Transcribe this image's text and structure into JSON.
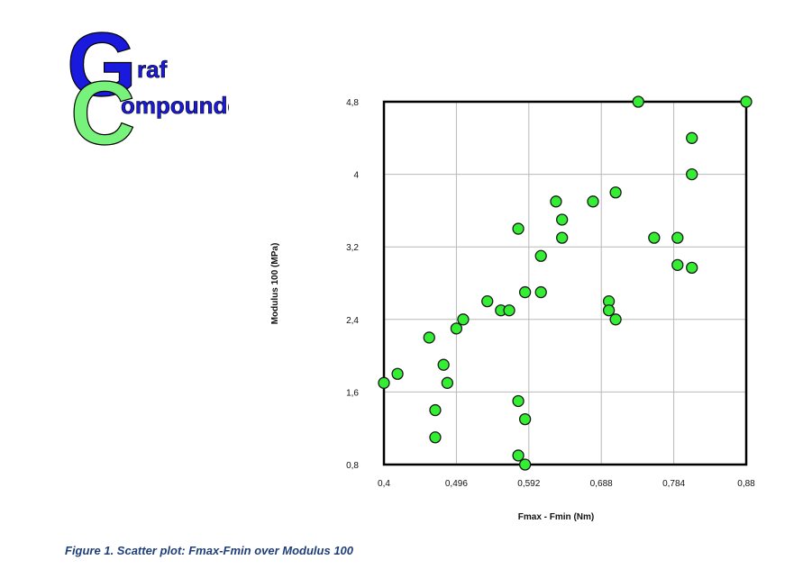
{
  "logo": {
    "word1": "raf",
    "word2": "ompounder",
    "letter1": "G",
    "letter2": "C",
    "color_blue": "#1a1adf",
    "color_green": "#77f27a"
  },
  "caption": "Figure 1. Scatter plot:  Fmax-Fmin over Modulus 100",
  "chart_data": {
    "type": "scatter",
    "title": "",
    "xlabel": "Fmax - Fmin  (Nm)",
    "ylabel": "Modulus 100 (MPa)",
    "xlim": [
      0.4,
      0.88
    ],
    "ylim": [
      0.8,
      4.8
    ],
    "xticks": [
      "0,4",
      "0,496",
      "0,592",
      "0,688",
      "0,784",
      "0,88"
    ],
    "yticks": [
      "0,8",
      "1,6",
      "2,4",
      "3,2",
      "4",
      "4,8"
    ],
    "grid": true,
    "marker_color": "#33ee33",
    "points": [
      {
        "x": 0.4,
        "y": 1.7
      },
      {
        "x": 0.418,
        "y": 1.8
      },
      {
        "x": 0.46,
        "y": 2.2
      },
      {
        "x": 0.468,
        "y": 1.4
      },
      {
        "x": 0.468,
        "y": 1.1
      },
      {
        "x": 0.479,
        "y": 1.9
      },
      {
        "x": 0.484,
        "y": 1.7
      },
      {
        "x": 0.496,
        "y": 2.3
      },
      {
        "x": 0.505,
        "y": 2.4
      },
      {
        "x": 0.537,
        "y": 2.6
      },
      {
        "x": 0.555,
        "y": 2.5
      },
      {
        "x": 0.566,
        "y": 2.5
      },
      {
        "x": 0.578,
        "y": 3.4
      },
      {
        "x": 0.578,
        "y": 1.5
      },
      {
        "x": 0.578,
        "y": 0.9
      },
      {
        "x": 0.587,
        "y": 2.7
      },
      {
        "x": 0.587,
        "y": 1.3
      },
      {
        "x": 0.587,
        "y": 0.8
      },
      {
        "x": 0.608,
        "y": 3.1
      },
      {
        "x": 0.608,
        "y": 2.7
      },
      {
        "x": 0.628,
        "y": 3.7
      },
      {
        "x": 0.636,
        "y": 3.5
      },
      {
        "x": 0.636,
        "y": 3.3
      },
      {
        "x": 0.677,
        "y": 3.7
      },
      {
        "x": 0.698,
        "y": 2.6
      },
      {
        "x": 0.698,
        "y": 2.5
      },
      {
        "x": 0.707,
        "y": 3.8
      },
      {
        "x": 0.707,
        "y": 2.4
      },
      {
        "x": 0.737,
        "y": 4.8
      },
      {
        "x": 0.758,
        "y": 3.3
      },
      {
        "x": 0.789,
        "y": 3.3
      },
      {
        "x": 0.789,
        "y": 3.0
      },
      {
        "x": 0.808,
        "y": 4.4
      },
      {
        "x": 0.808,
        "y": 4.0
      },
      {
        "x": 0.808,
        "y": 2.97
      },
      {
        "x": 0.88,
        "y": 4.8
      }
    ]
  }
}
